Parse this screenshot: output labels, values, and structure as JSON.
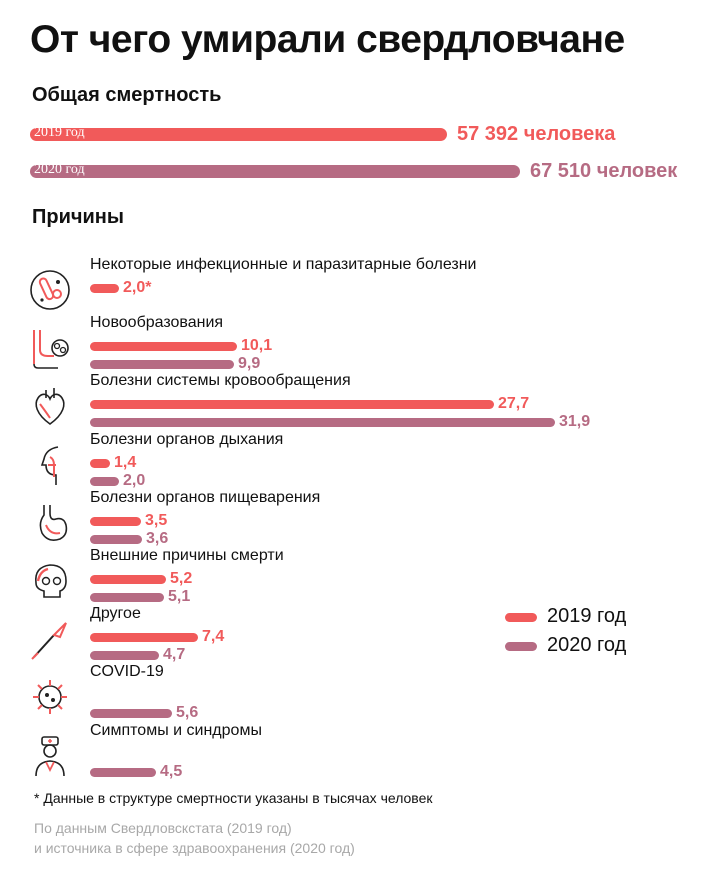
{
  "title": "От чего умирали свердловчане",
  "subtitle": "Общая смертность",
  "section_title": "Причины",
  "totals": [
    {
      "year_label": "2019 год",
      "value_label": "57 392 человека",
      "value": 57392
    },
    {
      "year_label": "2020 год",
      "value_label": "67 510 человек",
      "value": 67510
    }
  ],
  "legend": [
    "2019 год",
    "2020 год"
  ],
  "colors": {
    "y2019": "#f15a5a",
    "y2020": "#b66b83"
  },
  "footnote": "* Данные в структуре смертности указаны в тысячах человек",
  "source": [
    "По данным Свердловскстата (2019 год)",
    "и источника в сфере здравоохранения (2020 год)"
  ],
  "chart_data": {
    "type": "bar",
    "orientation": "horizontal",
    "unit": "тыс. человек",
    "categories": [
      "Некоторые инфекционные и паразитарные болезни",
      "Новообразования",
      "Болезни системы кровообращения",
      "Болезни органов дыхания",
      "Болезни органов пищеварения",
      "Внешние причины смерти",
      "Другое",
      "COVID-19",
      "Симптомы и синдромы"
    ],
    "icons": [
      "bacteria-icon",
      "intestine-tumor-icon",
      "heart-icon",
      "respiratory-icon",
      "stomach-icon",
      "skull-icon",
      "scalpel-icon",
      "virus-icon",
      "doctor-icon"
    ],
    "series": [
      {
        "name": "2019 год",
        "values": [
          2.0,
          10.1,
          27.7,
          1.4,
          3.5,
          5.2,
          7.4,
          null,
          null
        ],
        "labels": [
          "2,0*",
          "10,1",
          "27,7",
          "1,4",
          "3,5",
          "5,2",
          "7,4",
          null,
          null
        ]
      },
      {
        "name": "2020 год",
        "values": [
          null,
          9.9,
          31.9,
          2.0,
          3.6,
          5.1,
          4.7,
          5.6,
          4.5
        ],
        "labels": [
          null,
          "9,9",
          "31,9",
          "2,0",
          "3,6",
          "5,1",
          "4,7",
          "5,6",
          "4,5"
        ]
      }
    ]
  }
}
